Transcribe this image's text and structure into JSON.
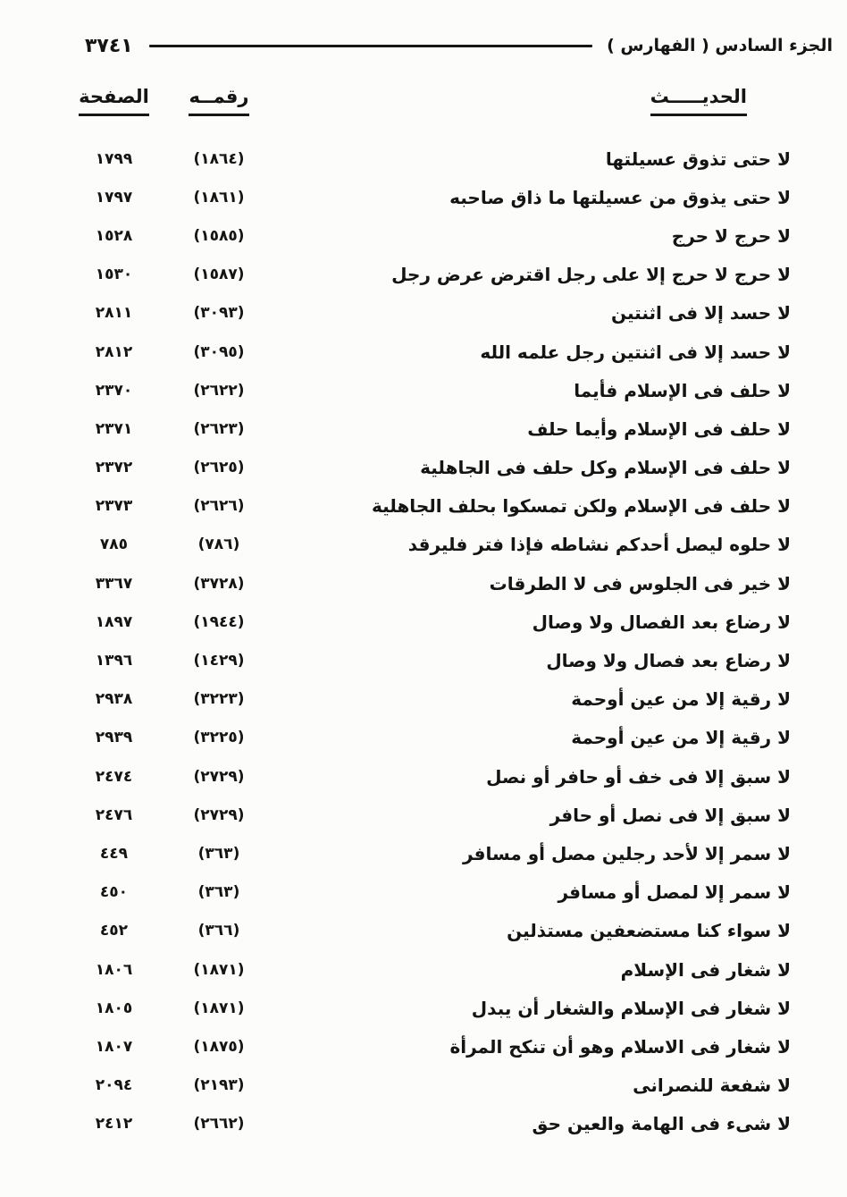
{
  "header": {
    "book_part": "الجزء السادس ( الفهارس )",
    "page_number": "٣٧٤١"
  },
  "table": {
    "columns": {
      "hadith": "الحديـــــث",
      "number": "رقمــه",
      "page": "الصفحة"
    },
    "rows": [
      {
        "text": "لا حتى تذوق عسيلتها",
        "num": "(١٨٦٤)",
        "page": "١٧٩٩"
      },
      {
        "text": "لا حتى يذوق من عسيلتها ما ذاق صاحبه",
        "num": "(١٨٦١)",
        "page": "١٧٩٧"
      },
      {
        "text": "لا حرج لا حرج",
        "num": "(١٥٨٥)",
        "page": "١٥٢٨"
      },
      {
        "text": "لا حرج لا حرج إلا على رجل اقترض عرض رجل",
        "num": "(١٥٨٧)",
        "page": "١٥٣٠"
      },
      {
        "text": "لا حسد إلا فى اثنتين",
        "num": "(٣٠٩٣)",
        "page": "٢٨١١"
      },
      {
        "text": "لا حسد إلا فى اثنتين رجل علمه الله",
        "num": "(٣٠٩٥)",
        "page": "٢٨١٢"
      },
      {
        "text": "لا حلف فى الإسلام فأيما",
        "num": "(٢٦٢٢)",
        "page": "٢٣٧٠"
      },
      {
        "text": "لا حلف فى الإسلام وأيما حلف",
        "num": "(٢٦٢٣)",
        "page": "٢٣٧١"
      },
      {
        "text": "لا حلف فى الإسلام وكل حلف فى الجاهلية",
        "num": "(٢٦٢٥)",
        "page": "٢٣٧٢"
      },
      {
        "text": "لا حلف فى الإسلام ولكن تمسكوا بحلف الجاهلية",
        "num": "(٢٦٢٦)",
        "page": "٢٣٧٣"
      },
      {
        "text": "لا حلوه ليصل أحدكم نشاطه فإذا فتر فليرقد",
        "num": "(٧٨٦)",
        "page": "٧٨٥"
      },
      {
        "text": "لا خير فى الجلوس فى لا الطرقات",
        "num": "(٣٧٢٨)",
        "page": "٣٣٦٧"
      },
      {
        "text": "لا رضاع بعد الفصال ولا وصال",
        "num": "(١٩٤٤)",
        "page": "١٨٩٧"
      },
      {
        "text": "لا رضاع بعد فصال ولا وصال",
        "num": "(١٤٢٩)",
        "page": "١٣٩٦"
      },
      {
        "text": "لا رقية إلا من عين أوحمة",
        "num": "(٣٢٢٣)",
        "page": "٢٩٣٨"
      },
      {
        "text": "لا رقية إلا من عين أوحمة",
        "num": "(٣٢٢٥)",
        "page": "٢٩٣٩"
      },
      {
        "text": "لا سبق إلا فى خف أو حافر أو نصل",
        "num": "(٢٧٢٩)",
        "page": "٢٤٧٤"
      },
      {
        "text": "لا سبق إلا فى نصل أو حافر",
        "num": "(٢٧٢٩)",
        "page": "٢٤٧٦"
      },
      {
        "text": "لا سمر إلا لأحد رجلين مصل أو مسافر",
        "num": "(٣٦٣)",
        "page": "٤٤٩"
      },
      {
        "text": "لا سمر إلا لمصل أو مسافر",
        "num": "(٣٦٣)",
        "page": "٤٥٠"
      },
      {
        "text": "لا سواء كنا مستضعفين مستذلين",
        "num": "(٣٦٦)",
        "page": "٤٥٢"
      },
      {
        "text": "لا شغار فى الإسلام",
        "num": "(١٨٧١)",
        "page": "١٨٠٦"
      },
      {
        "text": "لا شغار فى الإسلام والشغار أن يبدل",
        "num": "(١٨٧١)",
        "page": "١٨٠٥"
      },
      {
        "text": "لا شغار فى الاسلام وهو أن تنكح المرأة",
        "num": "(١٨٧٥)",
        "page": "١٨٠٧"
      },
      {
        "text": "لا شفعة للنصرانى",
        "num": "(٢١٩٣)",
        "page": "٢٠٩٤"
      },
      {
        "text": "لا شىء فى الهامة والعين حق",
        "num": "(٢٦٦٢)",
        "page": "٢٤١٢"
      }
    ]
  },
  "colors": {
    "ink": "#141414",
    "paper": "#fcfcfa"
  }
}
